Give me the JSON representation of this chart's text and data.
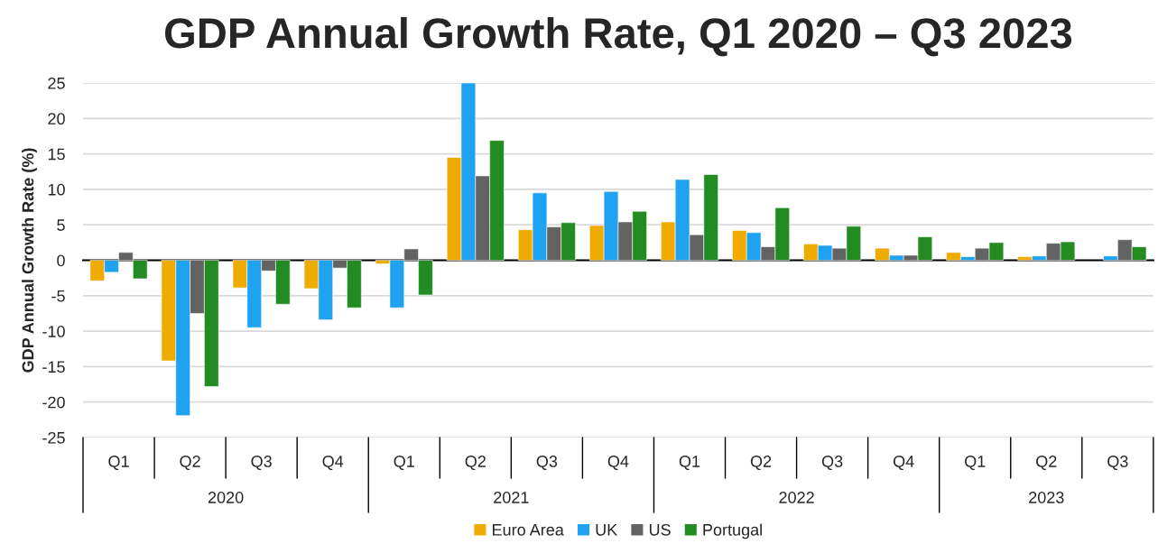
{
  "chart_data": {
    "type": "bar",
    "title": "GDP Annual Growth Rate, Q1 2020 – Q3 2023",
    "ylabel": "GDP Annual Growth Rate (%)",
    "categories": [
      "Q1",
      "Q2",
      "Q3",
      "Q4",
      "Q1",
      "Q2",
      "Q3",
      "Q4",
      "Q1",
      "Q2",
      "Q3",
      "Q4",
      "Q1",
      "Q2",
      "Q3"
    ],
    "annotations": [
      "2020",
      "2021",
      "2022",
      "2023"
    ],
    "series": [
      {
        "name": "Euro Area",
        "color": "#f0ab00",
        "values": [
          -2.9,
          -14.2,
          -3.9,
          -4.0,
          -0.5,
          14.5,
          4.3,
          4.9,
          5.4,
          4.2,
          2.3,
          1.7,
          1.1,
          0.5,
          null
        ]
      },
      {
        "name": "UK",
        "color": "#1fa2ef",
        "values": [
          -1.7,
          -21.9,
          -9.5,
          -8.4,
          -6.7,
          25.0,
          9.5,
          9.7,
          11.4,
          3.9,
          2.1,
          0.7,
          0.5,
          0.6,
          0.6
        ]
      },
      {
        "name": "US",
        "color": "#636363",
        "values": [
          1.1,
          -7.5,
          -1.5,
          -1.1,
          1.6,
          11.9,
          4.7,
          5.4,
          3.6,
          1.9,
          1.7,
          0.7,
          1.7,
          2.4,
          2.9
        ]
      },
      {
        "name": "Portugal",
        "color": "#228b22",
        "values": [
          -2.6,
          -17.8,
          -6.2,
          -6.7,
          -4.9,
          16.9,
          5.3,
          6.9,
          12.1,
          7.4,
          4.8,
          3.3,
          2.5,
          2.6,
          1.9
        ]
      }
    ],
    "ylim": [
      -25,
      25
    ],
    "yticks": [
      -25,
      -20,
      -15,
      -10,
      -5,
      0,
      5,
      10,
      15,
      20,
      25
    ],
    "grid": "y",
    "legend": "bottom"
  }
}
